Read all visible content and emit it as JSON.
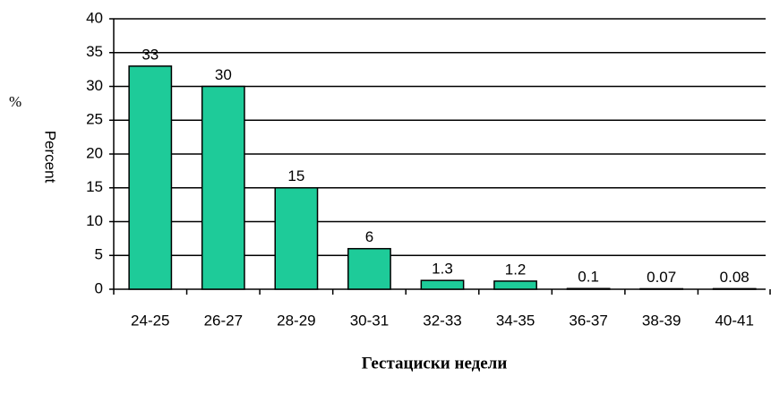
{
  "chart_data": {
    "type": "bar",
    "title": "Гестациски недели",
    "y_unit": "%",
    "ylabel": "Percent",
    "categories": [
      "24-25",
      "26-27",
      "28-29",
      "30-31",
      "32-33",
      "34-35",
      "36-37",
      "38-39",
      "40-41"
    ],
    "values": [
      33,
      30,
      15,
      6,
      1.3,
      1.2,
      0.1,
      0.07,
      0.08
    ],
    "color": "#1ecb99",
    "ylim": [
      0,
      40
    ],
    "yticks": [
      0,
      5,
      10,
      15,
      20,
      25,
      30,
      35,
      40
    ],
    "grid": true
  }
}
